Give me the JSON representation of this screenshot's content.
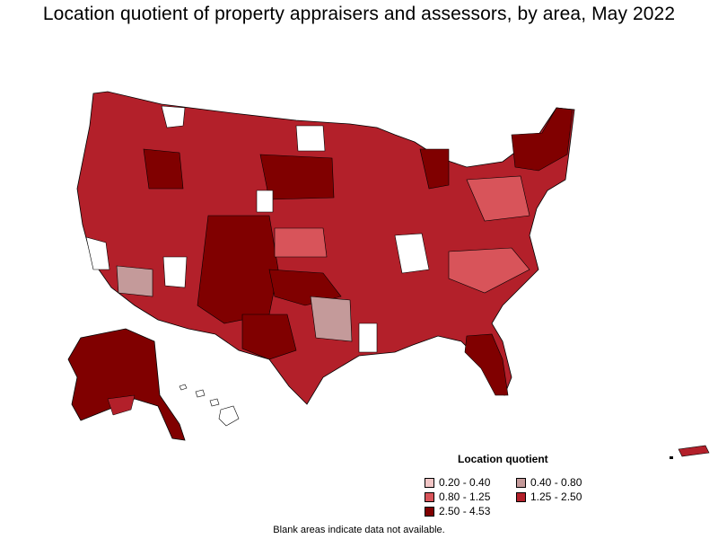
{
  "title": "Location quotient of property appraisers and assessors, by area, May 2022",
  "legend": {
    "title": "Location quotient",
    "items": [
      {
        "label": "0.20 - 0.40",
        "color": "#f2c6c6"
      },
      {
        "label": "0.40 - 0.80",
        "color": "#c49a9a"
      },
      {
        "label": "0.80 - 1.25",
        "color": "#d8545a"
      },
      {
        "label": "1.25 - 2.50",
        "color": "#b3202a"
      },
      {
        "label": "2.50 - 4.53",
        "color": "#800000"
      }
    ]
  },
  "footnote": "Blank areas indicate data not available.",
  "colors": {
    "no_data": "#ffffff",
    "border": "#000000",
    "background": "#ffffff"
  }
}
